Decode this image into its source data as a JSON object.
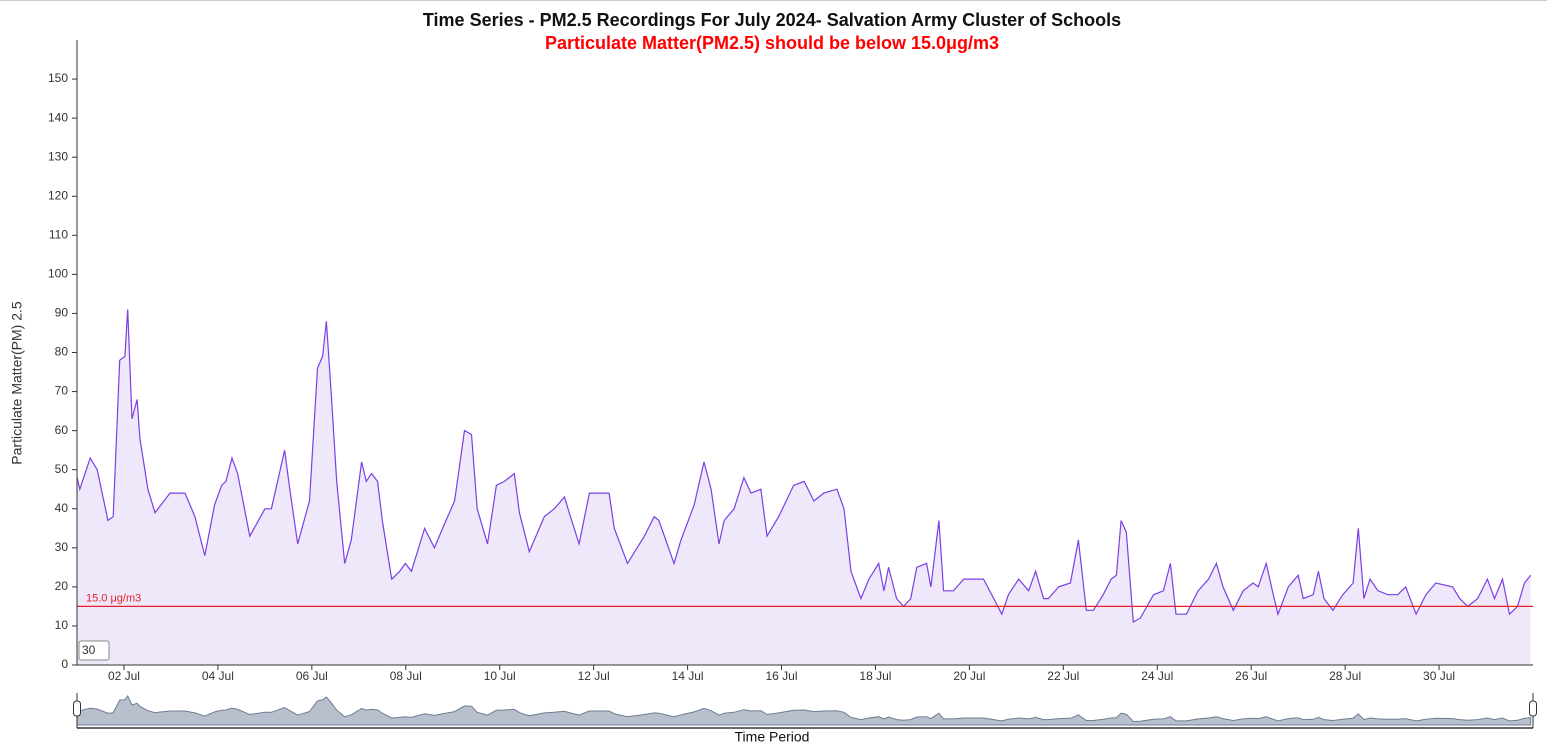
{
  "chart_data": {
    "type": "line",
    "title": "Time Series - PM2.5 Recordings For July 2024- Salvation Army Cluster of Schools",
    "subtitle": "Particulate Matter(PM2.5) should be below 15.0μg/m3",
    "y_label": "Particulate Matter(PM) 2.5",
    "x_label": "Time Period",
    "range_input": "30",
    "threshold": {
      "value": 15,
      "label": "15.0 μg/m3",
      "color": "#e8222a"
    },
    "xlim": [
      1,
      32
    ],
    "xticks": [
      {
        "value": 2,
        "label": "02 Jul"
      },
      {
        "value": 4,
        "label": "04 Jul"
      },
      {
        "value": 6,
        "label": "06 Jul"
      },
      {
        "value": 8,
        "label": "08 Jul"
      },
      {
        "value": 10,
        "label": "10 Jul"
      },
      {
        "value": 12,
        "label": "12 Jul"
      },
      {
        "value": 14,
        "label": "14 Jul"
      },
      {
        "value": 16,
        "label": "16 Jul"
      },
      {
        "value": 18,
        "label": "18 Jul"
      },
      {
        "value": 20,
        "label": "20 Jul"
      },
      {
        "value": 22,
        "label": "22 Jul"
      },
      {
        "value": 24,
        "label": "24 Jul"
      },
      {
        "value": 26,
        "label": "26 Jul"
      },
      {
        "value": 28,
        "label": "28 Jul"
      },
      {
        "value": 30,
        "label": "30 Jul"
      }
    ],
    "ylim": [
      0,
      160
    ],
    "yticks": [
      0,
      10,
      20,
      30,
      40,
      50,
      60,
      70,
      80,
      90,
      100,
      110,
      120,
      130,
      140,
      150
    ],
    "x": [
      1.0,
      1.06,
      1.28,
      1.43,
      1.66,
      1.77,
      1.91,
      2.02,
      2.08,
      2.17,
      2.28,
      2.34,
      2.51,
      2.66,
      2.98,
      3.3,
      3.51,
      3.72,
      3.93,
      4.08,
      4.17,
      4.3,
      4.42,
      4.68,
      5.0,
      5.14,
      5.42,
      5.53,
      5.7,
      5.95,
      6.12,
      6.23,
      6.31,
      6.42,
      6.53,
      6.7,
      6.84,
      7.06,
      7.16,
      7.27,
      7.4,
      7.5,
      7.7,
      7.87,
      7.99,
      8.12,
      8.4,
      8.61,
      8.82,
      9.04,
      9.25,
      9.4,
      9.52,
      9.74,
      9.93,
      10.1,
      10.31,
      10.42,
      10.63,
      10.95,
      11.16,
      11.38,
      11.48,
      11.69,
      11.91,
      12.16,
      12.33,
      12.44,
      12.72,
      13.08,
      13.29,
      13.39,
      13.71,
      13.86,
      14.14,
      14.35,
      14.5,
      14.67,
      14.78,
      14.99,
      15.2,
      15.35,
      15.56,
      15.69,
      15.94,
      16.26,
      16.48,
      16.69,
      16.9,
      17.18,
      17.33,
      17.48,
      17.69,
      17.86,
      18.07,
      18.18,
      18.28,
      18.45,
      18.6,
      18.75,
      18.88,
      19.09,
      19.18,
      19.35,
      19.45,
      19.66,
      19.88,
      20.3,
      20.52,
      20.69,
      20.83,
      21.05,
      21.26,
      21.41,
      21.58,
      21.68,
      21.9,
      22.15,
      22.32,
      22.49,
      22.64,
      22.85,
      23.02,
      23.13,
      23.23,
      23.34,
      23.49,
      23.64,
      23.92,
      24.13,
      24.28,
      24.4,
      24.62,
      24.87,
      25.09,
      25.26,
      25.4,
      25.62,
      25.83,
      26.04,
      26.15,
      26.32,
      26.47,
      26.57,
      26.79,
      27.0,
      27.11,
      27.32,
      27.43,
      27.55,
      27.74,
      27.95,
      28.17,
      28.28,
      28.4,
      28.53,
      28.7,
      28.91,
      29.12,
      29.29,
      29.51,
      29.72,
      29.93,
      30.29,
      30.44,
      30.61,
      30.82,
      31.03,
      31.18,
      31.35,
      31.5,
      31.67,
      31.82,
      31.95
    ],
    "series": [
      {
        "name": "PM2.5",
        "color": "#7b3fe4",
        "fill": "#efe8fb",
        "values": [
          48,
          45,
          53,
          50,
          37,
          38,
          78,
          79,
          91,
          63,
          68,
          58,
          45,
          39,
          44,
          44,
          38,
          28,
          41,
          46,
          47,
          53,
          49,
          33,
          40,
          40,
          55,
          45,
          31,
          42,
          76,
          79,
          88,
          68,
          47,
          26,
          32,
          52,
          47,
          49,
          47,
          37,
          22,
          24,
          26,
          24,
          35,
          30,
          36,
          42,
          60,
          59,
          40,
          31,
          46,
          47,
          49,
          39,
          29,
          38,
          40,
          43,
          39,
          31,
          44,
          44,
          44,
          35,
          26,
          33,
          38,
          37,
          26,
          32,
          41,
          52,
          45,
          31,
          37,
          40,
          48,
          44,
          45,
          33,
          38,
          46,
          47,
          42,
          44,
          45,
          40,
          24,
          17,
          22,
          26,
          19,
          25,
          17,
          15,
          17,
          25,
          26,
          20,
          37,
          19,
          19,
          22,
          22,
          17,
          13,
          18,
          22,
          19,
          24,
          17,
          17,
          20,
          21,
          32,
          14,
          14,
          18,
          22,
          23,
          37,
          34,
          11,
          12,
          18,
          19,
          26,
          13,
          13,
          19,
          22,
          26,
          20,
          14,
          19,
          21,
          20,
          26,
          18,
          13,
          20,
          23,
          17,
          18,
          24,
          17,
          14,
          18,
          21,
          35,
          17,
          22,
          19,
          18,
          18,
          20,
          13,
          18,
          21,
          20,
          17,
          15,
          17,
          22,
          17,
          22,
          13,
          15,
          21,
          23
        ]
      }
    ]
  }
}
